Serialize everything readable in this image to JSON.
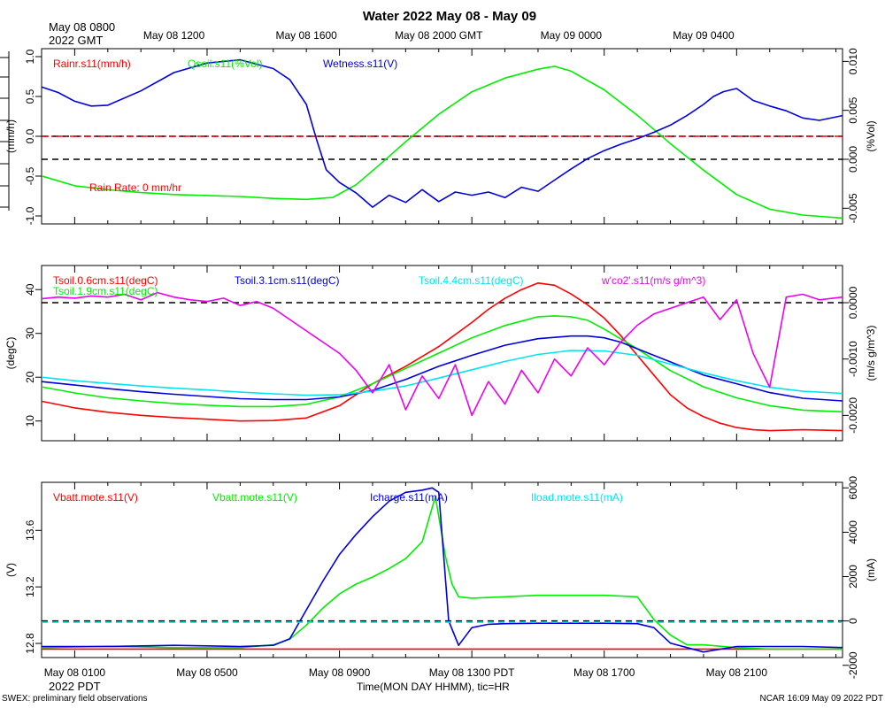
{
  "title": "Water 2022 May 08 - May 09",
  "top_axis": {
    "corner_line1": "May 08 0800",
    "corner_line2": "2022 GMT",
    "ticks": [
      "May 08 1200",
      "May 08 1600",
      "May 08 2000 GMT",
      "May 09 0000",
      "May 09 0400"
    ]
  },
  "bottom_axis": {
    "ticks": [
      "May 08 0100",
      "May 08 0500",
      "May 08 0900",
      "May 08 1300 PDT",
      "May 08 1700",
      "May 08 2100"
    ],
    "year_label": "2022 PDT",
    "xlabel": "Time(MON DAY HHMM), tic=HR"
  },
  "footer": {
    "left": "SWEX: preliminary field observations",
    "right": "NCAR 16:09 May 09 2022 PDT"
  },
  "colors": {
    "red": "#ff0000",
    "green": "#00ee00",
    "blue": "#0000dd",
    "cyan": "#00e5ee",
    "magenta": "#ee00ee",
    "black": "#000000"
  },
  "chart_data": [
    {
      "type": "line",
      "title": "Rain / Soil moisture / Wetness",
      "x_units": "hours since May 08 00:00 PDT",
      "xlim": [
        0.0,
        24.2
      ],
      "ylabel_left": "(mm/h)",
      "ylim_left": [
        -1.1,
        1.1
      ],
      "yticks_left": [
        -1.0,
        -0.5,
        0.0,
        0.5,
        1.0
      ],
      "ytick_labels_left": [
        "-1.0",
        "-0.5",
        "0.0",
        "0.5",
        "1.0"
      ],
      "ylabel_right": "(%Vol)",
      "ylim_right": [
        -0.0066,
        0.0113
      ],
      "yticks_right": [
        -0.005,
        0.0,
        0.005,
        0.01
      ],
      "ytick_labels_right": [
        "-0.005",
        "0.000",
        "0.005",
        "0.010"
      ],
      "legend": [
        "Rainr.s11(mm/h)",
        "Qsoil.s11(%Vol)",
        "Wetness.s11(V)"
      ],
      "annotation": "Rain Rate: 0 mm/hr",
      "series": [
        {
          "name": "Rainr.s11(mm/h)",
          "axis": "left",
          "style": "dashdot",
          "x": [
            0.0,
            24.2
          ],
          "y": [
            0.0,
            0.0
          ]
        },
        {
          "name": "Qsoil.s11(%Vol)",
          "axis": "right",
          "x": [
            0.0,
            1.0,
            2.0,
            3.0,
            4.0,
            5.0,
            6.0,
            7.0,
            8.0,
            8.8,
            9.5,
            10.3,
            11.0,
            12.0,
            13.0,
            14.0,
            15.0,
            15.5,
            16.0,
            17.0,
            18.0,
            19.0,
            20.0,
            21.0,
            22.0,
            23.0,
            24.2
          ],
          "y": [
            -0.0017,
            -0.0027,
            -0.0031,
            -0.0034,
            -0.0036,
            -0.0037,
            -0.0038,
            -0.004,
            -0.0041,
            -0.0039,
            -0.0026,
            -0.0003,
            0.0018,
            0.0046,
            0.0069,
            0.0083,
            0.0092,
            0.0095,
            0.009,
            0.0071,
            0.0045,
            0.0016,
            -0.0011,
            -0.0036,
            -0.0051,
            -0.0057,
            -0.006
          ]
        },
        {
          "name": "Wetness.s11(V)",
          "axis": "left",
          "x": [
            0.0,
            0.5,
            1.0,
            1.5,
            2.0,
            3.0,
            4.0,
            5.0,
            6.0,
            7.0,
            7.5,
            8.0,
            8.3,
            8.6,
            9.0,
            9.5,
            10.0,
            10.5,
            11.0,
            11.5,
            12.0,
            12.5,
            13.0,
            13.5,
            14.0,
            14.5,
            15.0,
            15.5,
            16.0,
            16.5,
            17.0,
            17.5,
            18.0,
            18.5,
            19.0,
            19.5,
            20.0,
            20.3,
            20.6,
            21.0,
            21.5,
            22.0,
            22.5,
            23.0,
            23.5,
            24.2
          ],
          "y": [
            0.62,
            0.55,
            0.44,
            0.38,
            0.39,
            0.57,
            0.8,
            0.92,
            0.96,
            0.85,
            0.71,
            0.4,
            -0.03,
            -0.42,
            -0.58,
            -0.71,
            -0.89,
            -0.74,
            -0.83,
            -0.67,
            -0.82,
            -0.7,
            -0.74,
            -0.7,
            -0.77,
            -0.64,
            -0.69,
            -0.55,
            -0.41,
            -0.28,
            -0.18,
            -0.1,
            -0.03,
            0.05,
            0.14,
            0.26,
            0.4,
            0.5,
            0.56,
            0.6,
            0.45,
            0.38,
            0.32,
            0.23,
            0.2,
            0.26
          ]
        }
      ],
      "reference_lines": [
        {
          "axis": "left",
          "value": 0.0,
          "color": "black",
          "style": "dashed"
        },
        {
          "axis": "right",
          "value": 0.0,
          "color": "black",
          "style": "dashed"
        }
      ]
    },
    {
      "type": "line",
      "title": "Soil temperature / CO2 flux",
      "x_units": "hours since May 08 00:00 PDT",
      "xlim": [
        0.0,
        24.2
      ],
      "ylabel_left": "(degC)",
      "ylim_left": [
        5.5,
        45.5
      ],
      "yticks_left": [
        10,
        20,
        30,
        40
      ],
      "ytick_labels_left": [
        "10",
        "20",
        "30",
        "40"
      ],
      "ylabel_right": "(m/s g/m^3)",
      "ylim_right": [
        -0.00245,
        0.00066
      ],
      "yticks_right": [
        -0.002,
        -0.001,
        0.0
      ],
      "ytick_labels_right": [
        "-0.0020",
        "-0.0010",
        "0.0000"
      ],
      "legend": [
        "Tsoil.0.6cm.s11(degC)",
        "Tsoil.1.9cm.s11(degC)",
        "Tsoil.3.1cm.s11(degC)",
        "Tsoil.4.4cm.s11(degC)",
        "w'co2'.s11(m/s g/m^3)"
      ],
      "series": [
        {
          "name": "Tsoil.0.6cm.s11(degC)",
          "axis": "left",
          "x": [
            0.0,
            1.0,
            2.0,
            3.0,
            4.0,
            5.0,
            6.0,
            7.0,
            8.0,
            9.0,
            10.0,
            11.0,
            12.0,
            13.0,
            13.5,
            14.0,
            14.5,
            15.0,
            15.5,
            16.0,
            16.5,
            17.0,
            17.5,
            18.0,
            18.5,
            19.0,
            19.5,
            20.0,
            20.5,
            21.0,
            21.5,
            22.0,
            23.0,
            24.2
          ],
          "y": [
            14.5,
            13.0,
            12.0,
            11.3,
            10.8,
            10.4,
            10.0,
            10.1,
            10.7,
            13.5,
            18.5,
            22.5,
            27.0,
            32.5,
            35.5,
            38.0,
            40.0,
            41.5,
            41.0,
            39.0,
            36.5,
            33.5,
            29.5,
            25.0,
            20.5,
            16.0,
            13.0,
            11.0,
            9.5,
            8.5,
            8.0,
            7.8,
            8.0,
            7.8
          ]
        },
        {
          "name": "Tsoil.1.9cm.s11(degC)",
          "axis": "left",
          "x": [
            0.0,
            1.0,
            2.0,
            3.0,
            4.0,
            5.0,
            6.0,
            7.0,
            8.0,
            9.0,
            10.0,
            11.0,
            12.0,
            13.0,
            14.0,
            15.0,
            15.5,
            16.0,
            16.5,
            17.0,
            18.0,
            19.0,
            20.0,
            21.0,
            22.0,
            23.0,
            24.2
          ],
          "y": [
            17.8,
            16.4,
            15.3,
            14.6,
            14.0,
            13.6,
            13.3,
            13.3,
            13.8,
            15.5,
            18.5,
            22.0,
            25.5,
            29.0,
            31.8,
            33.8,
            34.0,
            33.8,
            33.0,
            31.0,
            26.5,
            21.5,
            17.8,
            15.3,
            13.5,
            12.5,
            12.1
          ]
        },
        {
          "name": "Tsoil.3.1cm.s11(degC)",
          "axis": "left",
          "x": [
            0.0,
            1.0,
            2.0,
            3.0,
            4.0,
            5.0,
            6.0,
            7.0,
            8.0,
            9.0,
            10.0,
            11.0,
            12.0,
            13.0,
            14.0,
            15.0,
            16.0,
            16.5,
            17.0,
            17.5,
            18.0,
            19.0,
            20.0,
            21.0,
            22.0,
            23.0,
            24.2
          ],
          "y": [
            19.0,
            18.2,
            17.4,
            16.7,
            16.1,
            15.6,
            15.1,
            14.9,
            14.9,
            15.5,
            17.0,
            19.5,
            22.5,
            25.0,
            27.3,
            28.8,
            29.4,
            29.4,
            29.0,
            28.0,
            26.5,
            23.5,
            20.5,
            18.5,
            16.5,
            15.2,
            14.6
          ]
        },
        {
          "name": "Tsoil.4.4cm.s11(degC)",
          "axis": "left",
          "x": [
            0.0,
            1.0,
            2.0,
            3.0,
            4.0,
            5.0,
            6.0,
            7.0,
            8.0,
            9.0,
            10.0,
            11.0,
            12.0,
            13.0,
            14.0,
            15.0,
            16.0,
            17.0,
            18.0,
            19.0,
            20.0,
            21.0,
            22.0,
            23.0,
            24.2
          ],
          "y": [
            20.0,
            19.2,
            18.6,
            18.0,
            17.5,
            17.1,
            16.6,
            16.2,
            15.9,
            16.0,
            16.8,
            18.0,
            19.8,
            21.7,
            23.6,
            25.2,
            26.1,
            26.0,
            25.0,
            23.0,
            21.0,
            19.2,
            17.7,
            16.8,
            16.3
          ]
        },
        {
          "name": "w'co2'.s11(m/s g/m^3)",
          "axis": "right",
          "x": [
            0.0,
            0.5,
            1.0,
            1.5,
            2.0,
            2.5,
            3.0,
            3.5,
            4.0,
            4.5,
            5.0,
            5.5,
            6.0,
            6.5,
            7.0,
            7.5,
            8.0,
            8.5,
            9.0,
            9.5,
            10.0,
            10.5,
            11.0,
            11.5,
            12.0,
            12.5,
            13.0,
            13.5,
            14.0,
            14.5,
            15.0,
            15.5,
            16.0,
            16.5,
            17.0,
            17.5,
            18.0,
            18.5,
            19.0,
            19.5,
            20.0,
            20.5,
            21.0,
            21.5,
            22.0,
            22.5,
            23.0,
            23.5,
            24.2
          ],
          "y": [
            7e-05,
            0.0001,
            8e-05,
            0.00012,
            0.0001,
            0.00015,
            5e-05,
            0.00018,
            0.0001,
            5e-05,
            2e-05,
            8e-05,
            -5e-05,
            2e-05,
            -0.0001,
            -0.0003,
            -0.0005,
            -0.0007,
            -0.0009,
            -0.0012,
            -0.0016,
            -0.0011,
            -0.0019,
            -0.0013,
            -0.0017,
            -0.0011,
            -0.002,
            -0.0014,
            -0.0018,
            -0.0012,
            -0.0016,
            -0.001,
            -0.0013,
            -0.0008,
            -0.0011,
            -0.0007,
            -0.0004,
            -0.0002,
            -0.0001,
            0.0,
            0.0001,
            -0.0003,
            5e-05,
            -0.0009,
            -0.0015,
            0.0001,
            0.00015,
            5e-05,
            0.0001
          ]
        }
      ],
      "reference_lines": [
        {
          "axis": "right",
          "value": 0.0,
          "color": "black",
          "style": "dashed"
        }
      ]
    },
    {
      "type": "line",
      "title": "Battery / Charge / Load",
      "x_units": "hours since May 08 00:00 PDT",
      "xlim": [
        0.0,
        24.2
      ],
      "ylabel_left": "(V)",
      "ylim_left": [
        12.7,
        13.94
      ],
      "yticks_left": [
        12.8,
        13.2,
        13.6
      ],
      "ytick_labels_left": [
        "12.8",
        "13.2",
        "13.6"
      ],
      "ylabel_right": "(mA)",
      "ylim_right": [
        -1650,
        6250
      ],
      "yticks_right": [
        -2000,
        0,
        2000,
        4000,
        6000
      ],
      "ytick_labels_right": [
        "-2000",
        "0",
        "2000",
        "4000",
        "6000"
      ],
      "legend": [
        "Vbatt.mote.s11(V)",
        "Vbatt.mote.s11(V)",
        "Icharge.s11(mA)",
        "Iload.mote.s11(mA)"
      ],
      "series": [
        {
          "name": "Vbatt.mote.s11(V)",
          "axis": "left",
          "color": "red",
          "x": [
            0.0,
            24.2
          ],
          "y": [
            12.76,
            12.76
          ]
        },
        {
          "name": "Vbatt.mote.s11(V)",
          "axis": "left",
          "color": "green",
          "x": [
            0.0,
            2.0,
            4.0,
            6.0,
            7.0,
            7.5,
            8.0,
            8.5,
            9.0,
            9.5,
            10.0,
            10.5,
            11.0,
            11.5,
            11.9,
            12.2,
            12.4,
            12.6,
            13.0,
            14.0,
            15.0,
            16.0,
            17.0,
            18.0,
            18.5,
            19.0,
            19.5,
            20.0,
            21.0,
            22.0,
            23.0,
            24.2
          ],
          "y": [
            12.77,
            12.78,
            12.77,
            12.77,
            12.79,
            12.83,
            12.93,
            13.05,
            13.15,
            13.22,
            13.27,
            13.33,
            13.4,
            13.52,
            13.84,
            13.42,
            13.22,
            13.13,
            13.12,
            13.13,
            13.14,
            13.14,
            13.14,
            13.13,
            12.97,
            12.86,
            12.79,
            12.79,
            12.77,
            12.76,
            12.76,
            12.76
          ]
        },
        {
          "name": "Icharge.s11(mA)",
          "axis": "right",
          "x": [
            0.0,
            2.0,
            4.0,
            6.0,
            7.0,
            7.5,
            8.0,
            8.5,
            9.0,
            9.5,
            10.0,
            10.5,
            11.0,
            11.5,
            11.8,
            12.0,
            12.3,
            12.6,
            13.0,
            13.5,
            14.0,
            15.0,
            16.0,
            17.0,
            18.0,
            18.5,
            19.0,
            19.5,
            20.0,
            21.0,
            22.0,
            23.0,
            24.2
          ],
          "y": [
            -1150,
            -1150,
            -1100,
            -1150,
            -1100,
            -800,
            500,
            1800,
            3000,
            3900,
            4700,
            5400,
            5800,
            5900,
            6000,
            5800,
            0,
            -1100,
            -300,
            -150,
            -120,
            -100,
            -100,
            -100,
            -120,
            -300,
            -1000,
            -1200,
            -1400,
            -1150,
            -1150,
            -1150,
            -1200
          ]
        },
        {
          "name": "Iload.mote.s11(mA)",
          "axis": "right",
          "style": "dashed",
          "x": [
            0.0,
            24.2
          ],
          "y": [
            -60,
            -60
          ]
        }
      ],
      "reference_lines": [
        {
          "axis": "right",
          "value": 0.0,
          "color": "black",
          "style": "dashed"
        }
      ]
    }
  ]
}
